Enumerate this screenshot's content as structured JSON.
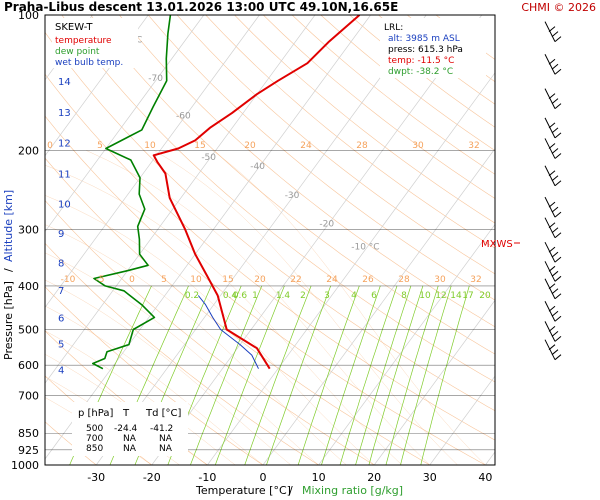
{
  "header": {
    "title": "Praha-Libus   descent   13.01.2026 13:00 UTC   49.10N,16.65E",
    "credit": "CHMI © 2026"
  },
  "legend": {
    "skewt": "SKEW-T",
    "temperature": "temperature",
    "dewpoint": "dew point",
    "wetbulb": "wet bulb temp."
  },
  "lrl": {
    "title": "LRL:",
    "alt": "alt: 3985 m ASL",
    "press": "press: 615.3 hPa",
    "temp": "temp: -11.5 °C",
    "dwpt": "dwpt: -38.2 °C"
  },
  "mxws": "MXWS",
  "axes": {
    "xlabel_a": "Temperature [°C]",
    "xlabel_sep": "/",
    "xlabel_b": "Mixing ratio [g/kg]",
    "ylabel_a": "Pressure [hPa]",
    "ylabel_sep": "/",
    "ylabel_b": "Altitude [km]"
  },
  "table": {
    "headers": [
      "p [hPa]",
      "T",
      "Td [°C]"
    ],
    "rows": [
      [
        "500",
        "-24.4",
        "-41.2"
      ],
      [
        "700",
        "NA",
        "NA"
      ],
      [
        "850",
        "NA",
        "NA"
      ]
    ]
  },
  "colors": {
    "temperature": "#e00000",
    "dewpoint": "#008000",
    "wetbulb": "#1a3fbf",
    "isotherm": "#f5b27a",
    "mixing": "#80cc2b",
    "dryadiabat": "#c8c8c8",
    "credit": "#c00000"
  },
  "chart_data": {
    "type": "line",
    "x_axis": "temperature [°C]",
    "y_axis": "pressure [hPa], logarithmic, skewed",
    "xlim": [
      -37,
      60
    ],
    "ylim": [
      1000,
      100
    ],
    "x_ticks": [
      "-30",
      "-20",
      "-10",
      "0",
      "10",
      "20",
      "30",
      "40"
    ],
    "pressure_ticks": [
      "100",
      "200",
      "300",
      "400",
      "500",
      "600",
      "700",
      "850",
      "925",
      "1000"
    ],
    "km_ticks": [
      "15",
      "14",
      "13",
      "12",
      "11",
      "10",
      "9",
      "8",
      "7",
      "6",
      "5",
      "4"
    ],
    "km_pressures": [
      121,
      141,
      165,
      193,
      226,
      264,
      307,
      357,
      411,
      472,
      540,
      617
    ],
    "isotherm_labels_top": [
      "-80 °C",
      "-70",
      "-60",
      "-50",
      "-40",
      "-30",
      "-20",
      "-10 °C"
    ],
    "isotherm_label_pressures": [
      115,
      140,
      170,
      210,
      220,
      255,
      295,
      332
    ],
    "mixing_ratio_upper": [
      "0",
      "5",
      "10",
      "15",
      "20",
      "24",
      "28",
      "30",
      "32",
      "34"
    ],
    "mixing_ratio_mid": [
      "-10",
      "-5",
      "0",
      "5",
      "10",
      "15",
      "20",
      "22",
      "24",
      "26",
      "28",
      "30",
      "32",
      "34"
    ],
    "mixing_ratio_lower": [
      "0.2",
      "0.4",
      "0.6",
      "1",
      "1.4",
      "2",
      "3",
      "4",
      "6",
      "8",
      "10",
      "12",
      "14",
      "17",
      "20",
      "25"
    ],
    "series": [
      {
        "name": "temperature",
        "points": [
          [
            611,
            -11.5
          ],
          [
            550,
            -16.5
          ],
          [
            500,
            -24.4
          ],
          [
            420,
            -30.5
          ],
          [
            380,
            -35
          ],
          [
            340,
            -40
          ],
          [
            300,
            -45
          ],
          [
            255,
            -52
          ],
          [
            225,
            -56
          ],
          [
            212,
            -59
          ],
          [
            205,
            -60.5
          ],
          [
            198,
            -57
          ],
          [
            190,
            -55
          ],
          [
            178,
            -54
          ],
          [
            165,
            -52
          ],
          [
            150,
            -50
          ],
          [
            140,
            -48
          ],
          [
            128,
            -45
          ],
          [
            115,
            -44
          ],
          [
            100,
            -42
          ]
        ]
      },
      {
        "name": "dew point",
        "points": [
          [
            611,
            -41.5
          ],
          [
            595,
            -44
          ],
          [
            580,
            -42.5
          ],
          [
            560,
            -43
          ],
          [
            540,
            -40
          ],
          [
            500,
            -41.2
          ],
          [
            470,
            -39
          ],
          [
            440,
            -43
          ],
          [
            410,
            -48
          ],
          [
            400,
            -52
          ],
          [
            385,
            -55
          ],
          [
            370,
            -50
          ],
          [
            360,
            -47
          ],
          [
            340,
            -50
          ],
          [
            315,
            -52
          ],
          [
            295,
            -54
          ],
          [
            270,
            -55
          ],
          [
            250,
            -58
          ],
          [
            230,
            -60
          ],
          [
            210,
            -64
          ],
          [
            198,
            -70
          ],
          [
            180,
            -66
          ],
          [
            160,
            -67
          ],
          [
            140,
            -68
          ],
          [
            125,
            -71
          ],
          [
            110,
            -74
          ],
          [
            100,
            -76
          ]
        ]
      },
      {
        "name": "wet bulb temp.",
        "points": [
          [
            611,
            -13.5
          ],
          [
            570,
            -16.5
          ],
          [
            540,
            -20
          ],
          [
            500,
            -25.5
          ],
          [
            470,
            -28.5
          ],
          [
            440,
            -31.5
          ],
          [
            420,
            -34
          ]
        ]
      }
    ],
    "wind_barbs_pressures": [
      110,
      130,
      155,
      180,
      200,
      230,
      270,
      300,
      340,
      375,
      410,
      460,
      510,
      560
    ]
  }
}
